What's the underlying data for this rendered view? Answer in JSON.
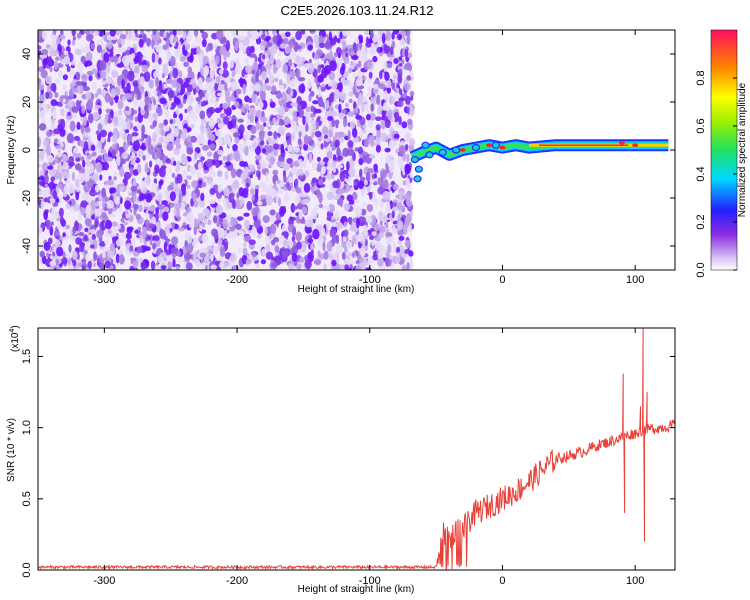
{
  "title": "C2E5.2026.103.11.24.R12",
  "chart_data": [
    {
      "type": "heatmap",
      "name": "spectrogram",
      "xlabel": "Height of straight line (km)",
      "ylabel": "Frequency (Hz)",
      "xlim": [
        -350,
        130
      ],
      "ylim": [
        -50,
        50
      ],
      "xticks": [
        -300,
        -200,
        -100,
        0,
        100
      ],
      "yticks": [
        -40,
        -20,
        0,
        20,
        40
      ],
      "noise_region_x": [
        -350,
        -68
      ],
      "signal_trace": {
        "x": [
          -68,
          -60,
          -50,
          -40,
          -30,
          -20,
          -10,
          0,
          10,
          20,
          40,
          60,
          80,
          100,
          125
        ],
        "freq": [
          -3,
          -1,
          1,
          -2,
          0,
          1,
          2,
          1,
          2,
          1,
          2,
          2,
          2,
          2,
          2
        ]
      },
      "colorbar": {
        "label": "Normalized spectral amplitude",
        "range": [
          0,
          1
        ],
        "ticks": [
          0.0,
          0.2,
          0.4,
          0.6,
          0.8
        ],
        "tick_labels": [
          "0.0",
          "0.2",
          "0.4",
          "0.6",
          "0.8"
        ]
      }
    },
    {
      "type": "line",
      "name": "snr",
      "xlabel": "Height of straight line (km)",
      "ylabel": "SNR (10 * v/v)",
      "y_scale_label": "(x10",
      "y_scale_exp": "4",
      "xlim": [
        -350,
        130
      ],
      "ylim": [
        0,
        1.7
      ],
      "xticks": [
        -300,
        -200,
        -100,
        0,
        100
      ],
      "yticks": [
        0.0,
        0.5,
        1.0,
        1.5
      ],
      "ytick_labels": [
        "0.0",
        "0.5",
        "1.0",
        "1.5"
      ],
      "color": "#e8413a",
      "series": {
        "x": [
          -350,
          -50,
          -45,
          -40,
          -35,
          -30,
          -25,
          -20,
          -10,
          0,
          10,
          20,
          30,
          40,
          50,
          60,
          70,
          80,
          90,
          95,
          100,
          105,
          110,
          120,
          130
        ],
        "y": [
          0.02,
          0.02,
          0.25,
          0.2,
          0.3,
          0.28,
          0.35,
          0.4,
          0.45,
          0.5,
          0.55,
          0.62,
          0.7,
          0.78,
          0.8,
          0.83,
          0.87,
          0.9,
          0.93,
          0.95,
          0.96,
          0.98,
          0.99,
          1.0,
          1.02
        ]
      },
      "spikes": [
        {
          "x": 91,
          "y": 1.38
        },
        {
          "x": 92,
          "y": 0.4
        },
        {
          "x": 104,
          "y": 1.15
        },
        {
          "x": 106,
          "y": 1.7
        },
        {
          "x": 107,
          "y": 0.2
        },
        {
          "x": 109,
          "y": 1.25
        }
      ]
    }
  ]
}
